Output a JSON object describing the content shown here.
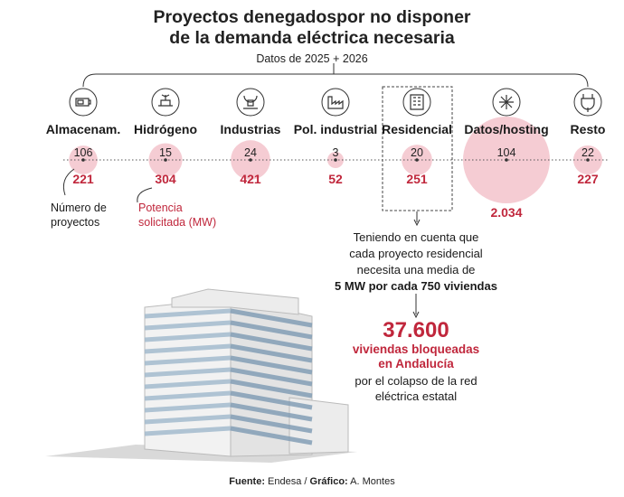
{
  "title_line1": "Proyectos denegadospor no disponer",
  "title_line2": "de la demanda eléctrica necesaria",
  "subtitle": "Datos de 2025 + 2026",
  "legend": {
    "count_line1": "Número de",
    "count_line2": "proyectos",
    "mw_line1": "Potencia",
    "mw_line2": "solicitada (MW)"
  },
  "note": {
    "line1": "Teniendo en cuenta que",
    "line2": "cada proyecto residencial",
    "line3": "necesita una media de",
    "line4": "5 MW por cada 750 viviendas"
  },
  "highlight": {
    "number": "37.600",
    "red_line1": "viviendas bloqueadas",
    "red_line2": "en Andalucía",
    "line3": "por el colapso de la red",
    "line4": "eléctrica estatal"
  },
  "source": {
    "bold": "Fuente:",
    "text": " Endesa / ",
    "bold2": "Gráfico:",
    "text2": " A. Montes"
  },
  "colors": {
    "accent": "#c0273c",
    "bubble": "#f3c3cb",
    "line": "#333333"
  },
  "chart_data": {
    "type": "bubble",
    "categories": [
      "Almacenam.",
      "Hidrógeno",
      "Industrias",
      "Pol. industrial",
      "Residencial",
      "Datos/hosting",
      "Resto"
    ],
    "icons": [
      "battery-icon",
      "hydrogen-icon",
      "factory-gear-icon",
      "industrial-park-icon",
      "apartment-building-icon",
      "data-network-icon",
      "plug-icon"
    ],
    "series": [
      {
        "name": "Número de proyectos",
        "values": [
          106,
          15,
          24,
          3,
          20,
          104,
          22
        ],
        "labels": [
          "106",
          "15",
          "24",
          "3",
          "20",
          "104",
          "22"
        ]
      },
      {
        "name": "Potencia solicitada (MW)",
        "values": [
          221,
          304,
          421,
          52,
          251,
          2034,
          227
        ],
        "labels": [
          "221",
          "304",
          "421",
          "52",
          "251",
          "2.034",
          "227"
        ]
      }
    ],
    "highlighted_category": "Residencial"
  }
}
